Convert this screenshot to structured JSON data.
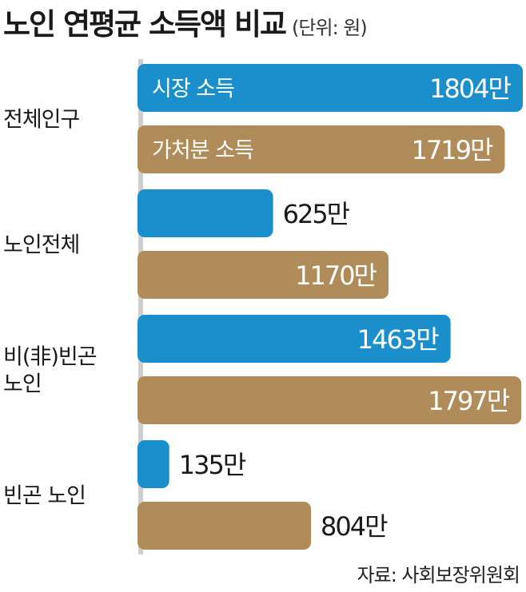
{
  "chart_data": {
    "type": "bar",
    "orientation": "horizontal",
    "title": "노인 연평균 소득액 비교",
    "unit": "(단위: 원)",
    "source": "자료: 사회보장위원회",
    "categories": [
      [
        "전체인구"
      ],
      [
        "노인전체"
      ],
      [
        "비(非)빈곤",
        "노인"
      ],
      [
        "빈곤 노인"
      ]
    ],
    "series": [
      {
        "name": "시장 소득",
        "color": "#1b8fcc",
        "values": [
          1804,
          625,
          1463,
          135
        ],
        "labels": [
          "1804만",
          "625만",
          "1463만",
          "135만"
        ]
      },
      {
        "name": "가처분 소득",
        "color": "#b08c5a",
        "values": [
          1719,
          1170,
          1797,
          804
        ],
        "labels": [
          "1719만",
          "1170만",
          "1797만",
          "804만"
        ]
      }
    ],
    "xlim": [
      0,
      1804
    ]
  }
}
